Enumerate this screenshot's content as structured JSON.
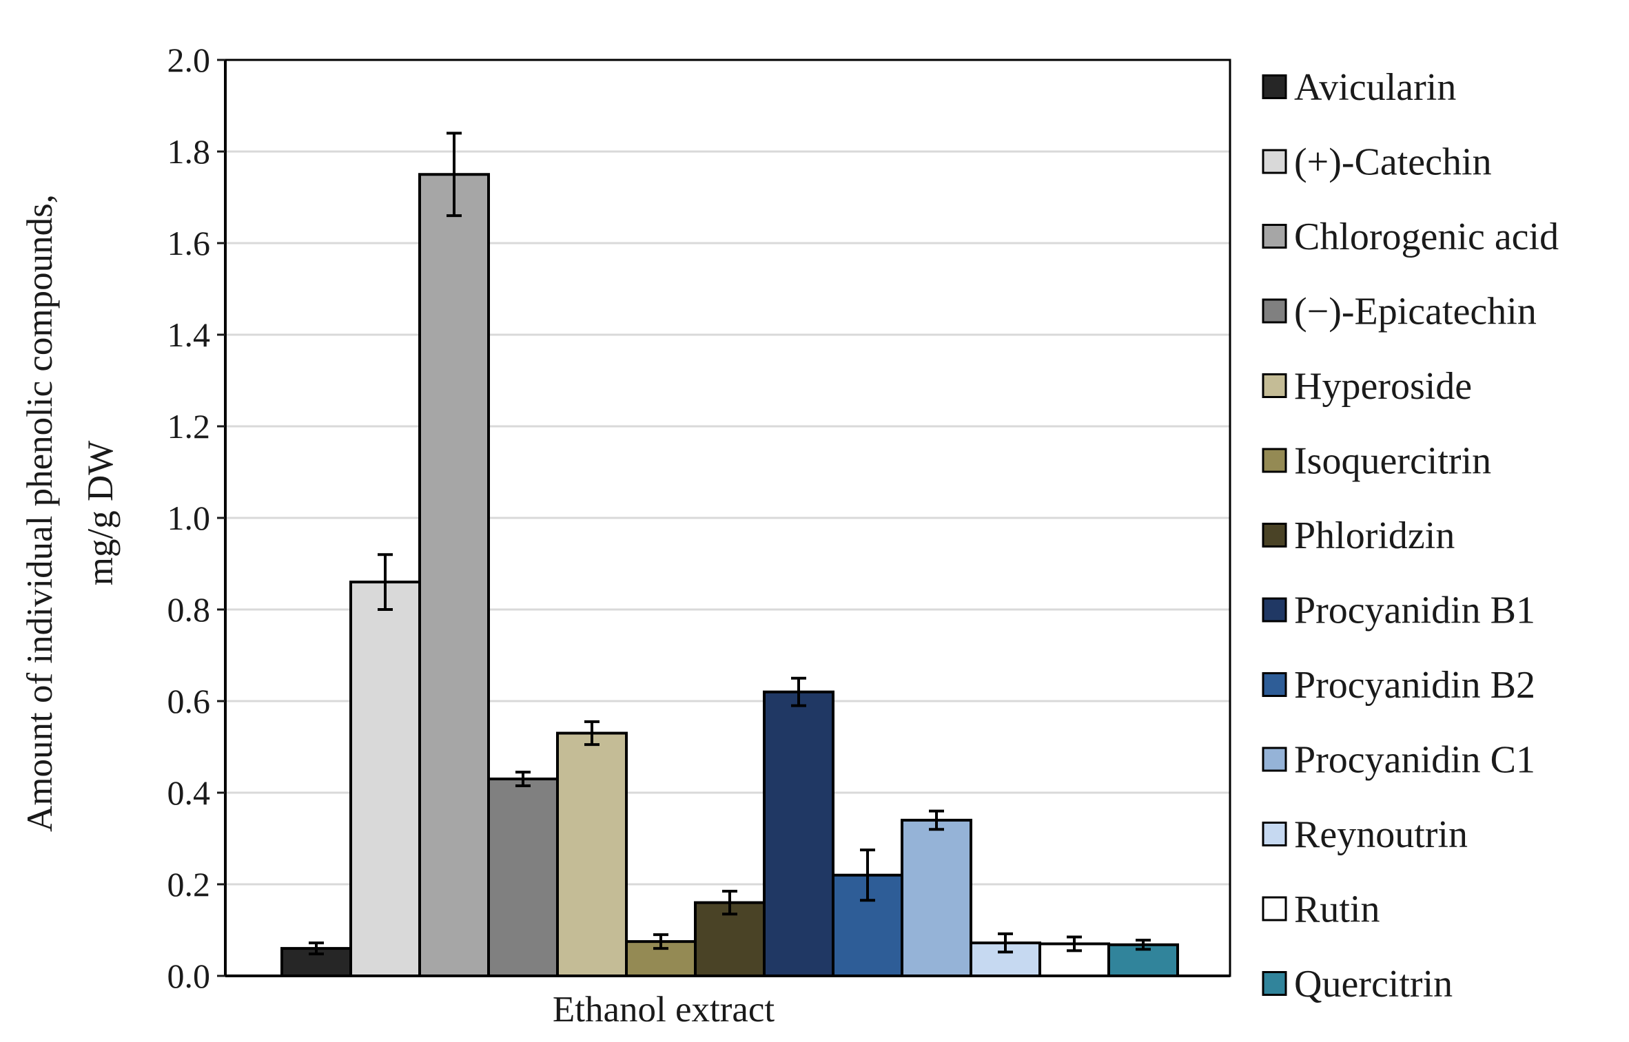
{
  "chart_data": {
    "type": "bar",
    "title": "",
    "xlabel": "Ethanol extract",
    "ylabel": "Amount of individual phenolic compounds,",
    "ylabel_unit": "mg/g DW",
    "ylim": [
      0,
      2.0
    ],
    "yticks": [
      "0.0",
      "0.2",
      "0.4",
      "0.6",
      "0.8",
      "1.0",
      "1.2",
      "1.4",
      "1.6",
      "1.8",
      "2.0"
    ],
    "grid": true,
    "legend_position": "right",
    "categories": [
      "Ethanol extract"
    ],
    "series": [
      {
        "name": "Avicularin",
        "value": 0.06,
        "error": 0.012,
        "color": "#262626"
      },
      {
        "name": "(+)-Catechin",
        "value": 0.86,
        "error": 0.06,
        "color": "#d9d9d9"
      },
      {
        "name": "Chlorogenic acid",
        "value": 1.75,
        "error": 0.09,
        "color": "#a6a6a6"
      },
      {
        "name": "(−)-Epicatechin",
        "value": 0.43,
        "error": 0.015,
        "color": "#808080"
      },
      {
        "name": "Hyperoside",
        "value": 0.53,
        "error": 0.025,
        "color": "#c4bc96"
      },
      {
        "name": "Isoquercitrin",
        "value": 0.075,
        "error": 0.015,
        "color": "#948a54"
      },
      {
        "name": "Phloridzin",
        "value": 0.16,
        "error": 0.025,
        "color": "#4a4326"
      },
      {
        "name": "Procyanidin B1",
        "value": 0.62,
        "error": 0.03,
        "color": "#203864"
      },
      {
        "name": "Procyanidin B2",
        "value": 0.22,
        "error": 0.055,
        "color": "#2e5d97"
      },
      {
        "name": "Procyanidin C1",
        "value": 0.34,
        "error": 0.02,
        "color": "#95b3d7"
      },
      {
        "name": "Reynoutrin",
        "value": 0.072,
        "error": 0.02,
        "color": "#c6d9f1"
      },
      {
        "name": "Rutin",
        "value": 0.07,
        "error": 0.015,
        "color": "#ffffff"
      },
      {
        "name": "Quercitrin",
        "value": 0.068,
        "error": 0.01,
        "color": "#31849b"
      }
    ]
  }
}
